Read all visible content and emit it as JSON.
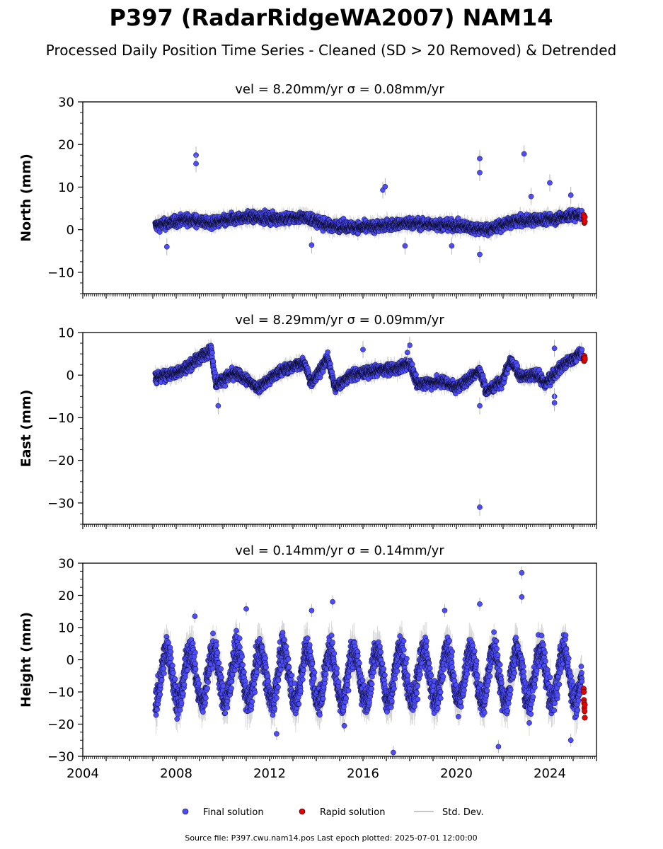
{
  "title": "P397 (RadarRidgeWA2007) NAM14",
  "subtitle": "Processed Daily Position Time Series - Cleaned (SD > 20 Removed) & Detrended",
  "footer": "Source file: P397.cwu.nam14.pos  Last epoch plotted: 2025-07-01 12:00:00",
  "legend": {
    "final_label": "Final solution",
    "rapid_label": "Rapid solution",
    "std_label": "Std. Dev."
  },
  "colors": {
    "final": "#4d4dff",
    "rapid": "#e60000",
    "std": "#b3b3b3",
    "marker_edge": "#000000"
  },
  "chart_data": [
    {
      "type": "scatter",
      "panel": "north",
      "title": "vel = 8.20mm/yr   σ = 0.08mm/yr",
      "ylabel": "North (mm)",
      "xlim": [
        2004.0,
        2026.0
      ],
      "ylim": [
        -15,
        30
      ],
      "yticks": [
        -10,
        0,
        10,
        20,
        30
      ],
      "xticks": [
        2004,
        2008,
        2012,
        2016,
        2020,
        2024
      ],
      "xtick_labels_shown": false,
      "data_range": [
        2007.1,
        2025.5
      ],
      "series": [
        {
          "kind": "final",
          "trend": [
            [
              2007.2,
              1.0
            ],
            [
              2008.5,
              2.5
            ],
            [
              2009.5,
              1.5
            ],
            [
              2011,
              3.0
            ],
            [
              2012.5,
              2.5
            ],
            [
              2013.5,
              3.0
            ],
            [
              2014.5,
              1.0
            ],
            [
              2016,
              0.5
            ],
            [
              2018,
              1.5
            ],
            [
              2020,
              1.0
            ],
            [
              2021.3,
              0.0
            ],
            [
              2022.5,
              2.0
            ],
            [
              2024,
              2.5
            ],
            [
              2025.3,
              3.5
            ]
          ]
        },
        {
          "kind": "outliers",
          "points": [
            [
              2008.85,
              17.5
            ],
            [
              2008.85,
              15.5
            ],
            [
              2016.85,
              9.3
            ],
            [
              2016.95,
              10.1
            ],
            [
              2021.0,
              16.7
            ],
            [
              2021.0,
              13.4
            ],
            [
              2022.9,
              17.8
            ],
            [
              2023.2,
              7.8
            ],
            [
              2024.0,
              11.0
            ],
            [
              2021.0,
              -5.8
            ],
            [
              2007.6,
              -4.0
            ],
            [
              2017.8,
              -3.8
            ],
            [
              2019.8,
              -3.8
            ],
            [
              2013.8,
              -3.6
            ],
            [
              2024.9,
              8.1
            ]
          ]
        },
        {
          "kind": "rapid",
          "points": [
            [
              2025.45,
              3.5
            ],
            [
              2025.46,
              2.8
            ],
            [
              2025.47,
              2.2
            ],
            [
              2025.48,
              1.6
            ],
            [
              2025.5,
              3.0
            ],
            [
              2025.5,
              1.9
            ]
          ]
        }
      ]
    },
    {
      "type": "scatter",
      "panel": "east",
      "title": "vel = 8.29mm/yr   σ = 0.09mm/yr",
      "ylabel": "East (mm)",
      "xlim": [
        2004.0,
        2026.0
      ],
      "ylim": [
        -35,
        10
      ],
      "yticks": [
        -30,
        -20,
        -10,
        0,
        10
      ],
      "xticks": [
        2004,
        2008,
        2012,
        2016,
        2020,
        2024
      ],
      "xtick_labels_shown": false,
      "data_range": [
        2007.1,
        2025.5
      ],
      "series": [
        {
          "kind": "final",
          "trend": [
            [
              2007.2,
              -0.5
            ],
            [
              2008,
              0.5
            ],
            [
              2008.5,
              2.0
            ],
            [
              2009.5,
              6.0
            ],
            [
              2009.7,
              -2.0
            ],
            [
              2010.5,
              0.5
            ],
            [
              2011,
              -1.0
            ],
            [
              2011.5,
              -3.0
            ],
            [
              2012.5,
              1.0
            ],
            [
              2013.5,
              3.0
            ],
            [
              2013.8,
              -2.0
            ],
            [
              2014.5,
              4.0
            ],
            [
              2014.8,
              -3.0
            ],
            [
              2015.5,
              0.0
            ],
            [
              2016.5,
              1.0
            ],
            [
              2017.5,
              1.5
            ],
            [
              2018,
              3.0
            ],
            [
              2018.3,
              -2.0
            ],
            [
              2019.5,
              -1.5
            ],
            [
              2020,
              -3.0
            ],
            [
              2021,
              1.0
            ],
            [
              2021.3,
              -4.0
            ],
            [
              2022,
              -1.0
            ],
            [
              2022.3,
              3.5
            ],
            [
              2022.8,
              -0.5
            ],
            [
              2023.5,
              0.0
            ],
            [
              2023.8,
              -2.0
            ],
            [
              2024.5,
              2.0
            ],
            [
              2025.3,
              5.0
            ]
          ]
        },
        {
          "kind": "outliers",
          "points": [
            [
              2021.0,
              -31.0
            ],
            [
              2009.8,
              -7.2
            ],
            [
              2021.0,
              -7.2
            ],
            [
              2018.0,
              7.0
            ],
            [
              2024.2,
              6.3
            ],
            [
              2024.2,
              -5.0
            ],
            [
              2024.2,
              -6.5
            ],
            [
              2016.0,
              6.0
            ],
            [
              2017.9,
              5.3
            ]
          ]
        },
        {
          "kind": "rapid",
          "points": [
            [
              2025.45,
              4.2
            ],
            [
              2025.46,
              3.8
            ],
            [
              2025.47,
              3.3
            ],
            [
              2025.48,
              4.5
            ],
            [
              2025.5,
              3.6
            ],
            [
              2025.5,
              4.0
            ]
          ]
        }
      ]
    },
    {
      "type": "scatter",
      "panel": "height",
      "title": "vel = 0.14mm/yr   σ = 0.14mm/yr",
      "ylabel": "Height (mm)",
      "xlim": [
        2004.0,
        2026.0
      ],
      "ylim": [
        -30,
        30
      ],
      "yticks": [
        -30,
        -20,
        -10,
        0,
        10,
        20,
        30
      ],
      "xticks": [
        2004,
        2008,
        2012,
        2016,
        2020,
        2024
      ],
      "xtick_labels": [
        "2004",
        "2008",
        "2012",
        "2016",
        "2020",
        "2024"
      ],
      "xtick_labels_shown": true,
      "data_range": [
        2007.1,
        2025.5
      ],
      "seasonal": {
        "amplitude_mm": 8,
        "mean_mm": -5,
        "peak_phase_year": 0.6
      },
      "series": [
        {
          "kind": "outliers",
          "points": [
            [
              2022.8,
              27.0
            ],
            [
              2022.8,
              19.5
            ],
            [
              2014.7,
              18.0
            ],
            [
              2021.0,
              17.3
            ],
            [
              2011.0,
              15.8
            ],
            [
              2013.8,
              15.3
            ],
            [
              2008.8,
              13.5
            ],
            [
              2019.5,
              15.3
            ],
            [
              2017.3,
              -28.8
            ],
            [
              2021.8,
              -27.0
            ],
            [
              2024.9,
              -25.0
            ],
            [
              2012.3,
              -23.0
            ],
            [
              2015.2,
              -20.5
            ]
          ]
        },
        {
          "kind": "rapid",
          "points": [
            [
              2025.45,
              -9.0
            ],
            [
              2025.46,
              -10.0
            ],
            [
              2025.46,
              -12.5
            ],
            [
              2025.47,
              -13.5
            ],
            [
              2025.48,
              -15.0
            ],
            [
              2025.49,
              -16.0
            ],
            [
              2025.5,
              -18.0
            ],
            [
              2025.5,
              -14.0
            ]
          ]
        }
      ]
    }
  ]
}
